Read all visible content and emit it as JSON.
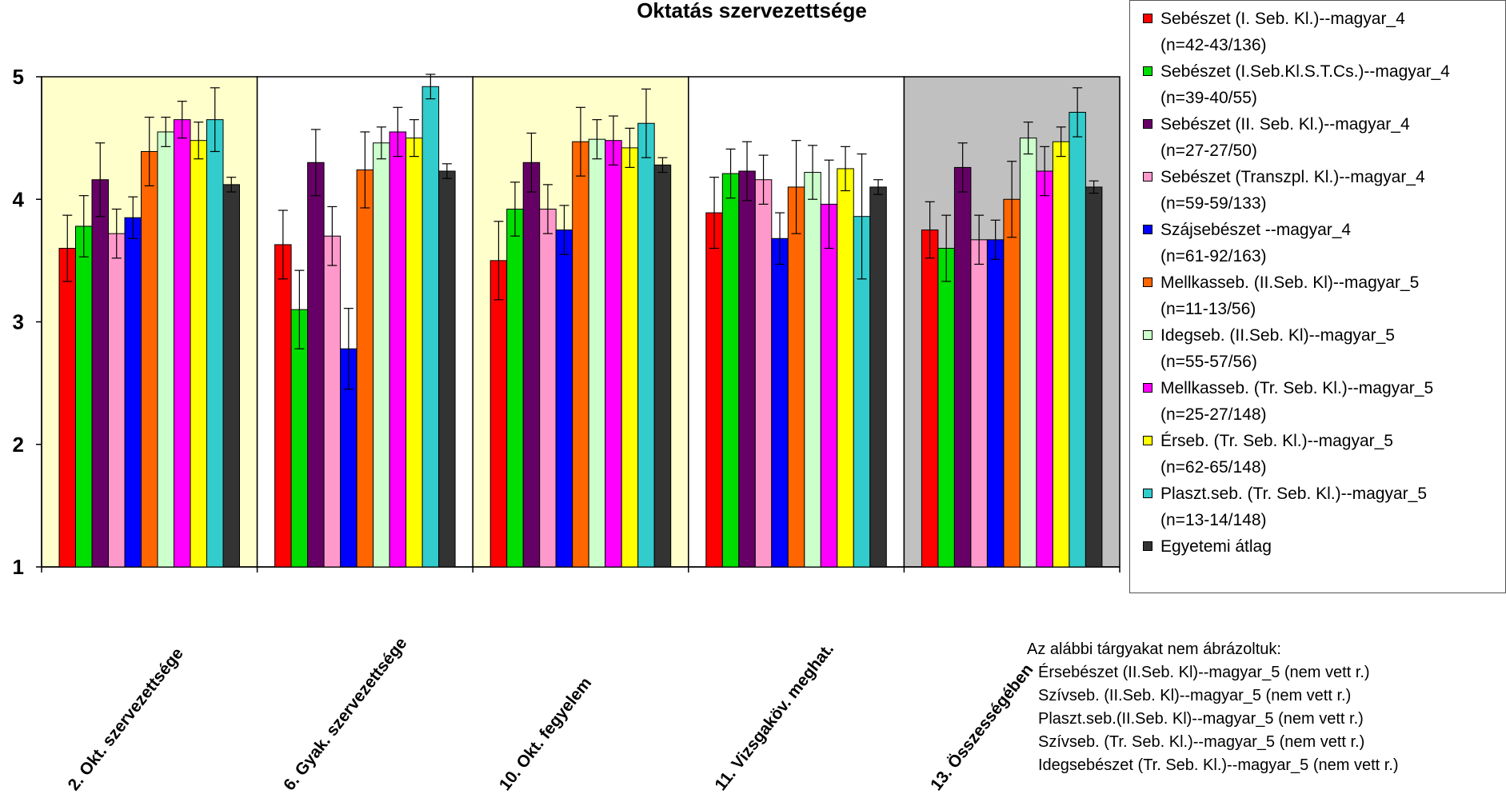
{
  "chart_data": {
    "type": "bar",
    "title": "Oktatás szervezettsége",
    "ylim": [
      1,
      5
    ],
    "yticks": [
      1,
      2,
      3,
      4,
      5
    ],
    "categories": [
      "2. Okt. szervezettsége",
      "6. Gyak. szervezettsége",
      "10. Okt. fegyelem",
      "11. Vizsgaköv. meghat.",
      "13. Összességében"
    ],
    "group_backgrounds": [
      "#ffffcc",
      "#ffffff",
      "#ffffcc",
      "#ffffff",
      "#c0c0c0"
    ],
    "series": [
      {
        "name": "Sebészet (I. Seb. Kl.)--magyar_4",
        "n": "(n=42-43/136)",
        "color": "#ff0000",
        "values": [
          3.6,
          3.63,
          3.5,
          3.89,
          3.75
        ],
        "errors": [
          0.27,
          0.28,
          0.32,
          0.29,
          0.23
        ]
      },
      {
        "name": "Sebészet (I.Seb.Kl.S.T.Cs.)--magyar_4",
        "n": "(n=39-40/55)",
        "color": "#00dd00",
        "values": [
          3.78,
          3.1,
          3.92,
          4.21,
          3.6
        ],
        "errors": [
          0.25,
          0.32,
          0.22,
          0.2,
          0.27
        ]
      },
      {
        "name": "Sebészet (II. Seb. Kl.)--magyar_4",
        "n": "(n=27-27/50)",
        "color": "#660066",
        "values": [
          4.16,
          4.3,
          4.3,
          4.23,
          4.26
        ],
        "errors": [
          0.3,
          0.27,
          0.24,
          0.24,
          0.2
        ]
      },
      {
        "name": "Sebészet (Transzpl. Kl.)--magyar_4",
        "n": "(n=59-59/133)",
        "color": "#ff99cc",
        "values": [
          3.72,
          3.7,
          3.92,
          4.16,
          3.67
        ],
        "errors": [
          0.2,
          0.24,
          0.2,
          0.2,
          0.2
        ]
      },
      {
        "name": "Szájsebészet --magyar_4",
        "n": "(n=61-92/163)",
        "color": "#0000ff",
        "values": [
          3.85,
          2.78,
          3.75,
          3.68,
          3.67
        ],
        "errors": [
          0.17,
          0.33,
          0.2,
          0.21,
          0.16
        ]
      },
      {
        "name": "Mellkasseb. (II.Seb. Kl)--magyar_5",
        "n": "(n=11-13/56)",
        "color": "#ff6600",
        "values": [
          4.39,
          4.24,
          4.47,
          4.1,
          4.0
        ],
        "errors": [
          0.28,
          0.31,
          0.28,
          0.38,
          0.31
        ]
      },
      {
        "name": "Idegseb. (II.Seb. Kl)--magyar_5",
        "n": "(n=55-57/56)",
        "color": "#ccffcc",
        "values": [
          4.55,
          4.46,
          4.49,
          4.22,
          4.5
        ],
        "errors": [
          0.12,
          0.13,
          0.16,
          0.22,
          0.13
        ]
      },
      {
        "name": "Mellkasseb. (Tr. Seb. Kl.)--magyar_5",
        "n": "(n=25-27/148)",
        "color": "#ff00ff",
        "values": [
          4.65,
          4.55,
          4.48,
          3.96,
          4.23
        ],
        "errors": [
          0.15,
          0.2,
          0.2,
          0.36,
          0.2
        ]
      },
      {
        "name": "Érseb. (Tr. Seb. Kl.)--magyar_5",
        "n": "(n=62-65/148)",
        "color": "#ffff00",
        "values": [
          4.48,
          4.5,
          4.42,
          4.25,
          4.47
        ],
        "errors": [
          0.15,
          0.15,
          0.16,
          0.18,
          0.12
        ]
      },
      {
        "name": "Plaszt.seb. (Tr. Seb. Kl.)--magyar_5",
        "n": "(n=13-14/148)",
        "color": "#33cccc",
        "values": [
          4.65,
          4.92,
          4.62,
          3.86,
          4.71
        ],
        "errors": [
          0.26,
          0.1,
          0.28,
          0.51,
          0.2
        ]
      },
      {
        "name": "Egyetemi átlag",
        "n": "",
        "color": "#333333",
        "values": [
          4.12,
          4.23,
          4.28,
          4.1,
          4.1
        ],
        "errors": [
          0.06,
          0.06,
          0.06,
          0.06,
          0.05
        ]
      }
    ]
  },
  "note": {
    "heading": "Az alábbi tárgyakat nem ábrázoltuk:",
    "items": [
      "Érsebészet (II.Seb. Kl)--magyar_5 (nem vett r.)",
      "Szívseb. (II.Seb. Kl)--magyar_5 (nem vett r.)",
      "Plaszt.seb.(II.Seb. Kl)--magyar_5 (nem vett r.)",
      "Szívseb. (Tr. Seb. Kl.)--magyar_5 (nem vett r.)",
      "Idegsebészet (Tr. Seb. Kl.)--magyar_5 (nem vett r.)"
    ]
  }
}
